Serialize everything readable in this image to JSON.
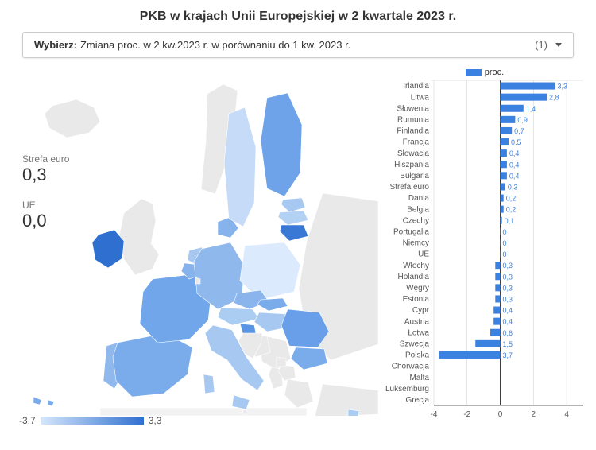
{
  "title": "PKB w krajach Unii Europejskiej w 2 kwartale 2023 r.",
  "selector": {
    "label": "Wybierz:",
    "value": "Zmiana proc. w 2 kw.2023 r. w porównaniu do 1 kw. 2023 r.",
    "count": "(1)"
  },
  "kpis": [
    {
      "label": "Strefa euro",
      "value": "0,3"
    },
    {
      "label": "UE",
      "value": "0,0"
    }
  ],
  "legend": {
    "min_label": "-3,7",
    "max_label": "3,3",
    "gradient_from": "#d6e7fb",
    "gradient_to": "#2f6fd0"
  },
  "bar_legend_label": "proc.",
  "bar_chart": {
    "type": "bar",
    "xlim": [
      -4,
      5
    ],
    "xticks": [
      -4,
      -2,
      0,
      2,
      4
    ],
    "bar_color": "#3b82e0",
    "label_color": "#555555",
    "value_color": "#3b82e0",
    "axis_color": "#333333",
    "grid_color": "#cccccc",
    "row_height": 14.1,
    "data": [
      {
        "name": "Irlandia",
        "value": 3.3,
        "label": "3,3"
      },
      {
        "name": "Litwa",
        "value": 2.8,
        "label": "2,8"
      },
      {
        "name": "Słowenia",
        "value": 1.4,
        "label": "1,4"
      },
      {
        "name": "Rumunia",
        "value": 0.9,
        "label": "0,9"
      },
      {
        "name": "Finlandia",
        "value": 0.7,
        "label": "0,7"
      },
      {
        "name": "Francja",
        "value": 0.5,
        "label": "0,5"
      },
      {
        "name": "Słowacja",
        "value": 0.4,
        "label": "0,4"
      },
      {
        "name": "Hiszpania",
        "value": 0.4,
        "label": "0,4"
      },
      {
        "name": "Bułgaria",
        "value": 0.4,
        "label": "0,4"
      },
      {
        "name": "Strefa euro",
        "value": 0.3,
        "label": "0,3"
      },
      {
        "name": "Dania",
        "value": 0.2,
        "label": "0,2"
      },
      {
        "name": "Belgia",
        "value": 0.2,
        "label": "0,2"
      },
      {
        "name": "Czechy",
        "value": 0.1,
        "label": "0,1"
      },
      {
        "name": "Portugalia",
        "value": 0,
        "label": "0"
      },
      {
        "name": "Niemcy",
        "value": 0,
        "label": "0"
      },
      {
        "name": "UE",
        "value": 0,
        "label": "0"
      },
      {
        "name": "Włochy",
        "value": -0.3,
        "label": "0,3"
      },
      {
        "name": "Holandia",
        "value": -0.3,
        "label": "0,3"
      },
      {
        "name": "Węgry",
        "value": -0.3,
        "label": "0,3"
      },
      {
        "name": "Estonia",
        "value": -0.3,
        "label": "0,3"
      },
      {
        "name": "Cypr",
        "value": -0.4,
        "label": "0,4"
      },
      {
        "name": "Austria",
        "value": -0.4,
        "label": "0,4"
      },
      {
        "name": "Łotwa",
        "value": -0.6,
        "label": "0,6"
      },
      {
        "name": "Szwecja",
        "value": -1.5,
        "label": "1,5"
      },
      {
        "name": "Polska",
        "value": -3.7,
        "label": "3,7"
      },
      {
        "name": "Chorwacja",
        "value": null,
        "label": ""
      },
      {
        "name": "Malta",
        "value": null,
        "label": ""
      },
      {
        "name": "Luksemburg",
        "value": null,
        "label": ""
      },
      {
        "name": "Grecja",
        "value": null,
        "label": ""
      }
    ]
  },
  "map": {
    "background": "#ffffff",
    "no_data_color": "#e9e9e9",
    "stroke": "#ffffff",
    "color_scale_min": -3.7,
    "color_scale_max": 3.3,
    "countries_geojson_note": "simplified shapes"
  }
}
